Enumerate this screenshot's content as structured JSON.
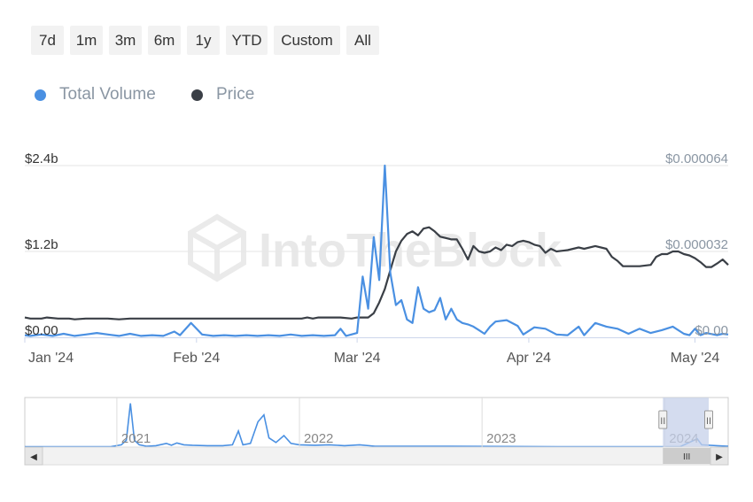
{
  "range_buttons": [
    "7d",
    "1m",
    "3m",
    "6m",
    "1y",
    "YTD",
    "Custom",
    "All"
  ],
  "legend": [
    {
      "label": "Total Volume",
      "color": "#4a90e2"
    },
    {
      "label": "Price",
      "color": "#3a3f46"
    }
  ],
  "watermark": "IntoTheBlock",
  "colors": {
    "volume": "#4a90e2",
    "price": "#3a3f46",
    "grid": "#e6e6e6",
    "navigator_mask": "#c5d0ea"
  },
  "chart_data": {
    "type": "line",
    "title": "",
    "xlabel": "",
    "x_range": [
      "2024-01-01",
      "2024-05-07"
    ],
    "x_ticks": [
      "Jan '24",
      "Feb '24",
      "Mar '24",
      "Apr '24",
      "May '24"
    ],
    "y_left": {
      "label": "",
      "range": [
        0,
        2400000000
      ],
      "ticks": [
        "$0.00",
        "$1.2b",
        "$2.4b"
      ]
    },
    "y_right": {
      "label": "",
      "range": [
        0,
        6.4e-05
      ],
      "ticks": [
        "$0.00",
        "$0.000032",
        "$0.000064"
      ]
    },
    "grid": true,
    "legend_position": "top-left",
    "series": [
      {
        "name": "Total Volume",
        "axis": "left",
        "color": "#4a90e2",
        "points": [
          [
            "2024-01-01",
            30000000.0
          ],
          [
            "2024-01-02",
            20000000.0
          ],
          [
            "2024-01-04",
            40000000.0
          ],
          [
            "2024-01-06",
            20000000.0
          ],
          [
            "2024-01-08",
            50000000.0
          ],
          [
            "2024-01-10",
            20000000.0
          ],
          [
            "2024-01-12",
            40000000.0
          ],
          [
            "2024-01-14",
            60000000.0
          ],
          [
            "2024-01-16",
            40000000.0
          ],
          [
            "2024-01-18",
            20000000.0
          ],
          [
            "2024-01-20",
            50000000.0
          ],
          [
            "2024-01-22",
            20000000.0
          ],
          [
            "2024-01-24",
            30000000.0
          ],
          [
            "2024-01-26",
            20000000.0
          ],
          [
            "2024-01-28",
            80000000.0
          ],
          [
            "2024-01-29",
            30000000.0
          ],
          [
            "2024-01-31",
            200000000.0
          ],
          [
            "2024-02-02",
            40000000.0
          ],
          [
            "2024-02-04",
            20000000.0
          ],
          [
            "2024-02-06",
            30000000.0
          ],
          [
            "2024-02-08",
            20000000.0
          ],
          [
            "2024-02-10",
            30000000.0
          ],
          [
            "2024-02-12",
            20000000.0
          ],
          [
            "2024-02-14",
            30000000.0
          ],
          [
            "2024-02-16",
            20000000.0
          ],
          [
            "2024-02-18",
            40000000.0
          ],
          [
            "2024-02-20",
            20000000.0
          ],
          [
            "2024-02-22",
            30000000.0
          ],
          [
            "2024-02-24",
            20000000.0
          ],
          [
            "2024-02-26",
            30000000.0
          ],
          [
            "2024-02-27",
            120000000.0
          ],
          [
            "2024-02-28",
            20000000.0
          ],
          [
            "2024-03-01",
            60000000.0
          ],
          [
            "2024-03-02",
            850000000.0
          ],
          [
            "2024-03-03",
            400000000.0
          ],
          [
            "2024-03-04",
            1400000000.0
          ],
          [
            "2024-03-05",
            800000000.0
          ],
          [
            "2024-03-06",
            2400000000.0
          ],
          [
            "2024-03-07",
            900000000.0
          ],
          [
            "2024-03-08",
            450000000.0
          ],
          [
            "2024-03-09",
            520000000.0
          ],
          [
            "2024-03-10",
            250000000.0
          ],
          [
            "2024-03-11",
            200000000.0
          ],
          [
            "2024-03-12",
            700000000.0
          ],
          [
            "2024-03-13",
            400000000.0
          ],
          [
            "2024-03-14",
            350000000.0
          ],
          [
            "2024-03-15",
            380000000.0
          ],
          [
            "2024-03-16",
            550000000.0
          ],
          [
            "2024-03-17",
            250000000.0
          ],
          [
            "2024-03-18",
            400000000.0
          ],
          [
            "2024-03-19",
            250000000.0
          ],
          [
            "2024-03-20",
            200000000.0
          ],
          [
            "2024-03-21",
            180000000.0
          ],
          [
            "2024-03-22",
            150000000.0
          ],
          [
            "2024-03-23",
            100000000.0
          ],
          [
            "2024-03-24",
            50000000.0
          ],
          [
            "2024-03-25",
            150000000.0
          ],
          [
            "2024-03-26",
            220000000.0
          ],
          [
            "2024-03-28",
            240000000.0
          ],
          [
            "2024-03-30",
            160000000.0
          ],
          [
            "2024-03-31",
            40000000.0
          ],
          [
            "2024-04-02",
            140000000.0
          ],
          [
            "2024-04-04",
            120000000.0
          ],
          [
            "2024-04-06",
            40000000.0
          ],
          [
            "2024-04-08",
            30000000.0
          ],
          [
            "2024-04-10",
            150000000.0
          ],
          [
            "2024-04-11",
            30000000.0
          ],
          [
            "2024-04-13",
            200000000.0
          ],
          [
            "2024-04-15",
            150000000.0
          ],
          [
            "2024-04-17",
            120000000.0
          ],
          [
            "2024-04-19",
            50000000.0
          ],
          [
            "2024-04-21",
            120000000.0
          ],
          [
            "2024-04-23",
            60000000.0
          ],
          [
            "2024-04-25",
            100000000.0
          ],
          [
            "2024-04-27",
            150000000.0
          ],
          [
            "2024-04-29",
            50000000.0
          ],
          [
            "2024-04-30",
            30000000.0
          ],
          [
            "2024-05-01",
            120000000.0
          ],
          [
            "2024-05-02",
            30000000.0
          ],
          [
            "2024-05-03",
            60000000.0
          ],
          [
            "2024-05-05",
            30000000.0
          ],
          [
            "2024-05-06",
            50000000.0
          ],
          [
            "2024-05-07",
            40000000.0
          ]
        ]
      },
      {
        "name": "Price",
        "axis": "right",
        "color": "#3a3f46",
        "points": [
          [
            "2024-01-01",
            7.4e-06
          ],
          [
            "2024-01-02",
            7e-06
          ],
          [
            "2024-01-04",
            7e-06
          ],
          [
            "2024-01-05",
            7.4e-06
          ],
          [
            "2024-01-07",
            7e-06
          ],
          [
            "2024-01-09",
            7e-06
          ],
          [
            "2024-01-10",
            6.7e-06
          ],
          [
            "2024-01-12",
            7e-06
          ],
          [
            "2024-01-14",
            7e-06
          ],
          [
            "2024-01-16",
            7e-06
          ],
          [
            "2024-01-18",
            6.7e-06
          ],
          [
            "2024-01-20",
            7e-06
          ],
          [
            "2024-01-22",
            7e-06
          ],
          [
            "2024-01-24",
            7e-06
          ],
          [
            "2024-01-26",
            7e-06
          ],
          [
            "2024-01-28",
            7e-06
          ],
          [
            "2024-01-30",
            7e-06
          ],
          [
            "2024-02-01",
            7e-06
          ],
          [
            "2024-02-05",
            7e-06
          ],
          [
            "2024-02-10",
            7e-06
          ],
          [
            "2024-02-15",
            7e-06
          ],
          [
            "2024-02-20",
            7e-06
          ],
          [
            "2024-02-21",
            7.4e-06
          ],
          [
            "2024-02-22",
            7e-06
          ],
          [
            "2024-02-23",
            7.4e-06
          ],
          [
            "2024-02-25",
            7.4e-06
          ],
          [
            "2024-02-27",
            7.4e-06
          ],
          [
            "2024-02-29",
            7e-06
          ],
          [
            "2024-03-01",
            7.4e-06
          ],
          [
            "2024-03-03",
            7.4e-06
          ],
          [
            "2024-03-04",
            9e-06
          ],
          [
            "2024-03-05",
            1.3e-05
          ],
          [
            "2024-03-06",
            1.8e-05
          ],
          [
            "2024-03-07",
            2.5e-05
          ],
          [
            "2024-03-08",
            3.2e-05
          ],
          [
            "2024-03-09",
            3.6e-05
          ],
          [
            "2024-03-10",
            3.85e-05
          ],
          [
            "2024-03-11",
            3.95e-05
          ],
          [
            "2024-03-12",
            3.8e-05
          ],
          [
            "2024-03-13",
            4.05e-05
          ],
          [
            "2024-03-14",
            4.1e-05
          ],
          [
            "2024-03-15",
            3.95e-05
          ],
          [
            "2024-03-16",
            3.75e-05
          ],
          [
            "2024-03-17",
            3.7e-05
          ],
          [
            "2024-03-18",
            3.65e-05
          ],
          [
            "2024-03-19",
            3.65e-05
          ],
          [
            "2024-03-20",
            3.3e-05
          ],
          [
            "2024-03-21",
            2.9e-05
          ],
          [
            "2024-03-22",
            3.4e-05
          ],
          [
            "2024-03-23",
            3.2e-05
          ],
          [
            "2024-03-24",
            3.15e-05
          ],
          [
            "2024-03-25",
            3.2e-05
          ],
          [
            "2024-03-26",
            3.35e-05
          ],
          [
            "2024-03-27",
            3.25e-05
          ],
          [
            "2024-03-28",
            3.45e-05
          ],
          [
            "2024-03-29",
            3.4e-05
          ],
          [
            "2024-03-30",
            3.55e-05
          ],
          [
            "2024-03-31",
            3.6e-05
          ],
          [
            "2024-04-01",
            3.55e-05
          ],
          [
            "2024-04-02",
            3.45e-05
          ],
          [
            "2024-04-03",
            3.4e-05
          ],
          [
            "2024-04-04",
            3.15e-05
          ],
          [
            "2024-04-05",
            3.3e-05
          ],
          [
            "2024-04-06",
            3.2e-05
          ],
          [
            "2024-04-08",
            3.25e-05
          ],
          [
            "2024-04-10",
            3.35e-05
          ],
          [
            "2024-04-11",
            3.3e-05
          ],
          [
            "2024-04-13",
            3.4e-05
          ],
          [
            "2024-04-15",
            3.3e-05
          ],
          [
            "2024-04-16",
            3e-05
          ],
          [
            "2024-04-17",
            2.85e-05
          ],
          [
            "2024-04-18",
            2.65e-05
          ],
          [
            "2024-04-21",
            2.65e-05
          ],
          [
            "2024-04-23",
            2.7e-05
          ],
          [
            "2024-04-24",
            3e-05
          ],
          [
            "2024-04-25",
            3.1e-05
          ],
          [
            "2024-04-26",
            3.1e-05
          ],
          [
            "2024-04-27",
            3.2e-05
          ],
          [
            "2024-04-28",
            3.2e-05
          ],
          [
            "2024-04-29",
            3.1e-05
          ],
          [
            "2024-04-30",
            3.05e-05
          ],
          [
            "2024-05-01",
            2.95e-05
          ],
          [
            "2024-05-02",
            2.8e-05
          ],
          [
            "2024-05-03",
            2.62e-05
          ],
          [
            "2024-05-04",
            2.62e-05
          ],
          [
            "2024-05-05",
            2.75e-05
          ],
          [
            "2024-05-06",
            2.9e-05
          ],
          [
            "2024-05-07",
            2.7e-05
          ]
        ]
      }
    ]
  },
  "navigator": {
    "year_labels": [
      "2021",
      "2022",
      "2023",
      "2024"
    ],
    "x_range": [
      "2020-07-01",
      "2024-05-07"
    ],
    "selected_range": [
      "2024-01-01",
      "2024-05-07"
    ],
    "scrollbar_left_arrow": "◀",
    "scrollbar_right_arrow": "▶",
    "scrollbar_grip": "III",
    "handle_grip": "II",
    "series": {
      "name": "Total Volume",
      "points": [
        [
          "2020-07-01",
          0.01
        ],
        [
          "2020-12-20",
          0.01
        ],
        [
          "2021-01-10",
          0.05
        ],
        [
          "2021-01-20",
          0.15
        ],
        [
          "2021-01-28",
          0.95
        ],
        [
          "2021-02-05",
          0.15
        ],
        [
          "2021-02-15",
          0.05
        ],
        [
          "2021-03-01",
          0.02
        ],
        [
          "2021-03-20",
          0.03
        ],
        [
          "2021-04-10",
          0.08
        ],
        [
          "2021-04-20",
          0.04
        ],
        [
          "2021-05-01",
          0.09
        ],
        [
          "2021-05-15",
          0.05
        ],
        [
          "2021-06-01",
          0.04
        ],
        [
          "2021-07-01",
          0.03
        ],
        [
          "2021-08-01",
          0.03
        ],
        [
          "2021-08-20",
          0.05
        ],
        [
          "2021-09-01",
          0.35
        ],
        [
          "2021-09-10",
          0.05
        ],
        [
          "2021-09-25",
          0.08
        ],
        [
          "2021-10-10",
          0.55
        ],
        [
          "2021-10-22",
          0.7
        ],
        [
          "2021-11-01",
          0.2
        ],
        [
          "2021-11-15",
          0.1
        ],
        [
          "2021-12-01",
          0.25
        ],
        [
          "2021-12-15",
          0.08
        ],
        [
          "2022-01-01",
          0.05
        ],
        [
          "2022-02-01",
          0.04
        ],
        [
          "2022-03-01",
          0.05
        ],
        [
          "2022-04-01",
          0.03
        ],
        [
          "2022-05-01",
          0.05
        ],
        [
          "2022-06-01",
          0.02
        ],
        [
          "2022-08-01",
          0.02
        ],
        [
          "2022-10-01",
          0.02
        ],
        [
          "2023-01-01",
          0.015
        ],
        [
          "2023-06-01",
          0.01
        ],
        [
          "2023-12-01",
          0.01
        ],
        [
          "2024-02-01",
          0.01
        ],
        [
          "2024-03-06",
          0.18
        ],
        [
          "2024-03-15",
          0.05
        ],
        [
          "2024-04-15",
          0.03
        ],
        [
          "2024-05-07",
          0.02
        ]
      ]
    }
  }
}
